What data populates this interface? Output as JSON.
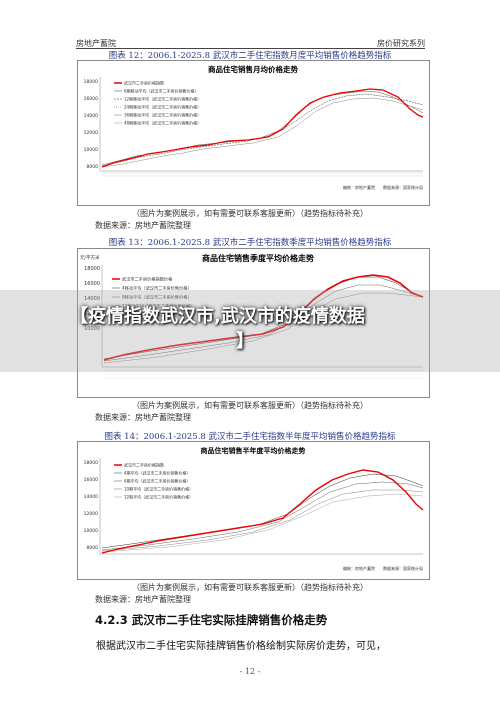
{
  "header": {
    "left": "房地产蓄院",
    "right": "房价研究系列"
  },
  "figures": [
    {
      "title": "图表 12：2006.1-2025.8 武汉市二手住宅指数月度平均销售价格趋势指标",
      "chart_title": "商品住宅销售月均价格走势",
      "caption": "（图片为案例展示，如有需要可联系客服更新）（趋势指标待补充）",
      "source": "数据来源：房地产蓄院整理",
      "legend": [
        "武汉市二手房价格指数",
        "6期移动平均（武汉市二手房价销售价格）",
        "12期移动平均（武汉市二手房价销售价格）",
        "24期移动平均（武汉市二手房价销售价格）",
        "36期移动平均（武汉市二手房价销售价格）",
        "48期移动平均（武汉市二手房价销售价格）"
      ],
      "footnote": "编制：房地产蓄院　　数据来源：国家统计局",
      "y_ticks": [
        "18000",
        "16000",
        "14000",
        "12000",
        "10000",
        "8000"
      ]
    },
    {
      "title": "图表 13：2006.1-2025.8 武汉市二手住宅指数季度平均销售价格趋势指标",
      "chart_title": "商品住宅销售季度平均价格走势",
      "y_unit": "元/平方米",
      "caption": "（图片为案例展示，如有需要可联系客服更新）（趋势指标待补充）",
      "source": "数据来源：房地产蓄院整理",
      "legend": [
        "武汉市二手房价格指数价格",
        "4移动平均（武汉市二手房价售价格）",
        "8移动平均（武汉市二手房价售价格）",
        "12移动平均（武汉市二手房价售价格）",
        "16移动平均（武汉市二手房价售价格）"
      ],
      "y_ticks": [
        "18000",
        "16000",
        "14000",
        "12000",
        "10000"
      ]
    },
    {
      "title": "图表 14：2006.1-2025.8 武汉市二手住宅指数半年度平均销售价格趋势指标",
      "chart_title": "商品住宅销售半年度平均价格走势",
      "caption": "（图片为案例展示，如有需要可联系客服更新）（趋势指标待补充）",
      "source": "数据来源：房地产蓄院整理",
      "legend": [
        "武汉市二手房价格指数",
        "4期平均（武汉市二手房价销售价格）",
        "6期平均（武汉市二手房价销售价格）",
        "10期平均（武汉市二手房价销售价格）",
        "12期平均（武汉市二手房价销售价格）"
      ],
      "footnote": "编制：房地产蓄院　　数据来源：国家统计局",
      "y_ticks": [
        "18000",
        "16000",
        "14000",
        "12000",
        "10000",
        "8000"
      ]
    }
  ],
  "overlay": {
    "line1": "【疫情指数武汉市,武汉市的疫情数据",
    "line2": "】"
  },
  "section": {
    "heading": "4.2.3 武汉市二手住宅实际挂牌销售价格走势",
    "body": "根据武汉市二手住宅实际挂牌销售价格绘制实际房价走势，可见，"
  },
  "page_number": "- 12 -"
}
